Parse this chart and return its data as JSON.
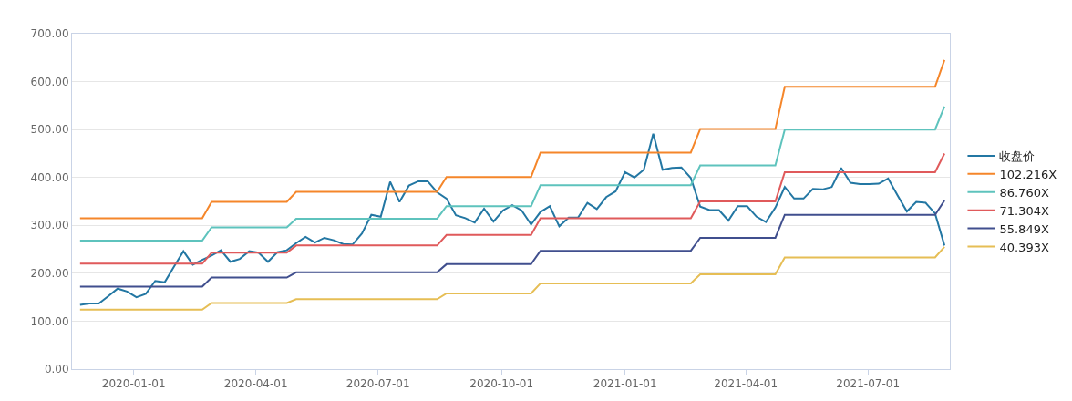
{
  "chart_data": {
    "type": "line",
    "x": [
      "2019-11-22",
      "2019-11-29",
      "2019-12-06",
      "2019-12-13",
      "2019-12-20",
      "2019-12-27",
      "2020-01-03",
      "2020-01-10",
      "2020-01-17",
      "2020-01-24",
      "2020-01-31",
      "2020-02-07",
      "2020-02-14",
      "2020-02-21",
      "2020-02-28",
      "2020-03-06",
      "2020-03-13",
      "2020-03-20",
      "2020-03-27",
      "2020-04-03",
      "2020-04-10",
      "2020-04-17",
      "2020-04-24",
      "2020-05-01",
      "2020-05-08",
      "2020-05-15",
      "2020-05-22",
      "2020-05-29",
      "2020-06-05",
      "2020-06-12",
      "2020-06-19",
      "2020-06-26",
      "2020-07-03",
      "2020-07-10",
      "2020-07-17",
      "2020-07-24",
      "2020-07-31",
      "2020-08-07",
      "2020-08-14",
      "2020-08-21",
      "2020-08-28",
      "2020-09-04",
      "2020-09-11",
      "2020-09-18",
      "2020-09-25",
      "2020-10-02",
      "2020-10-09",
      "2020-10-16",
      "2020-10-23",
      "2020-10-30",
      "2020-11-06",
      "2020-11-13",
      "2020-11-20",
      "2020-11-27",
      "2020-12-04",
      "2020-12-11",
      "2020-12-18",
      "2020-12-25",
      "2021-01-01",
      "2021-01-08",
      "2021-01-15",
      "2021-01-22",
      "2021-01-29",
      "2021-02-05",
      "2021-02-12",
      "2021-02-19",
      "2021-02-26",
      "2021-03-05",
      "2021-03-12",
      "2021-03-19",
      "2021-03-26",
      "2021-04-02",
      "2021-04-09",
      "2021-04-16",
      "2021-04-23",
      "2021-04-30",
      "2021-05-07",
      "2021-05-14",
      "2021-05-21",
      "2021-05-28",
      "2021-06-04",
      "2021-06-11",
      "2021-06-18",
      "2021-06-25",
      "2021-07-02",
      "2021-07-09",
      "2021-07-16",
      "2021-07-23",
      "2021-07-30",
      "2021-08-06",
      "2021-08-13",
      "2021-08-20",
      "2021-08-27"
    ],
    "series": [
      {
        "name": "收盘价",
        "color": "#2377a3",
        "values": [
          134,
          137,
          137,
          152,
          168,
          162,
          150,
          157,
          184,
          181,
          214,
          246,
          218,
          228,
          237,
          248,
          224,
          230,
          246,
          243,
          224,
          244,
          248,
          263,
          276,
          264,
          274,
          269,
          261,
          260,
          283,
          322,
          318,
          391,
          349,
          383,
          392,
          392,
          369,
          356,
          321,
          315,
          306,
          335,
          308,
          331,
          342,
          331,
          302,
          328,
          340,
          298,
          316,
          316,
          347,
          334,
          359,
          371,
          411,
          400,
          416,
          491,
          416,
          420,
          421,
          399,
          339,
          332,
          332,
          310,
          340,
          340,
          318,
          307,
          337,
          380,
          356,
          356,
          376,
          375,
          380,
          420,
          389,
          386,
          386,
          387,
          398,
          363,
          329,
          349,
          347,
          325,
          258
        ]
      },
      {
        "name": "102.216X",
        "color": "#f5862a",
        "values": [
          315,
          315,
          315,
          315,
          315,
          315,
          315,
          315,
          315,
          315,
          315,
          315,
          315,
          315,
          349,
          349,
          349,
          349,
          349,
          349,
          349,
          349,
          349,
          370,
          370,
          370,
          370,
          370,
          370,
          370,
          370,
          370,
          370,
          370,
          370,
          370,
          370,
          370,
          370,
          401,
          401,
          401,
          401,
          401,
          401,
          401,
          401,
          401,
          401,
          452,
          452,
          452,
          452,
          452,
          452,
          452,
          452,
          452,
          452,
          452,
          452,
          452,
          452,
          452,
          452,
          452,
          501,
          501,
          501,
          501,
          501,
          501,
          501,
          501,
          501,
          589,
          589,
          589,
          589,
          589,
          589,
          589,
          589,
          589,
          589,
          589,
          589,
          589,
          589,
          589,
          589,
          589,
          645
        ]
      },
      {
        "name": "86.760X",
        "color": "#5ec3bd",
        "values": [
          268,
          268,
          268,
          268,
          268,
          268,
          268,
          268,
          268,
          268,
          268,
          268,
          268,
          268,
          296,
          296,
          296,
          296,
          296,
          296,
          296,
          296,
          296,
          314,
          314,
          314,
          314,
          314,
          314,
          314,
          314,
          314,
          314,
          314,
          314,
          314,
          314,
          314,
          314,
          340,
          340,
          340,
          340,
          340,
          340,
          340,
          340,
          340,
          340,
          384,
          384,
          384,
          384,
          384,
          384,
          384,
          384,
          384,
          384,
          384,
          384,
          384,
          384,
          384,
          384,
          384,
          425,
          425,
          425,
          425,
          425,
          425,
          425,
          425,
          425,
          500,
          500,
          500,
          500,
          500,
          500,
          500,
          500,
          500,
          500,
          500,
          500,
          500,
          500,
          500,
          500,
          500,
          548
        ]
      },
      {
        "name": "71.304X",
        "color": "#e05a5b",
        "values": [
          220,
          220,
          220,
          220,
          220,
          220,
          220,
          220,
          220,
          220,
          220,
          220,
          220,
          220,
          243,
          243,
          243,
          243,
          243,
          243,
          243,
          243,
          243,
          258,
          258,
          258,
          258,
          258,
          258,
          258,
          258,
          258,
          258,
          258,
          258,
          258,
          258,
          258,
          258,
          280,
          280,
          280,
          280,
          280,
          280,
          280,
          280,
          280,
          280,
          315,
          315,
          315,
          315,
          315,
          315,
          315,
          315,
          315,
          315,
          315,
          315,
          315,
          315,
          315,
          315,
          315,
          350,
          350,
          350,
          350,
          350,
          350,
          350,
          350,
          350,
          411,
          411,
          411,
          411,
          411,
          411,
          411,
          411,
          411,
          411,
          411,
          411,
          411,
          411,
          411,
          411,
          411,
          450
        ]
      },
      {
        "name": "55.849X",
        "color": "#404f8e",
        "values": [
          172,
          172,
          172,
          172,
          172,
          172,
          172,
          172,
          172,
          172,
          172,
          172,
          172,
          172,
          191,
          191,
          191,
          191,
          191,
          191,
          191,
          191,
          191,
          202,
          202,
          202,
          202,
          202,
          202,
          202,
          202,
          202,
          202,
          202,
          202,
          202,
          202,
          202,
          202,
          219,
          219,
          219,
          219,
          219,
          219,
          219,
          219,
          219,
          219,
          247,
          247,
          247,
          247,
          247,
          247,
          247,
          247,
          247,
          247,
          247,
          247,
          247,
          247,
          247,
          247,
          247,
          274,
          274,
          274,
          274,
          274,
          274,
          274,
          274,
          274,
          322,
          322,
          322,
          322,
          322,
          322,
          322,
          322,
          322,
          322,
          322,
          322,
          322,
          322,
          322,
          322,
          322,
          352
        ]
      },
      {
        "name": "40.393X",
        "color": "#e6be55",
        "values": [
          124,
          124,
          124,
          124,
          124,
          124,
          124,
          124,
          124,
          124,
          124,
          124,
          124,
          124,
          138,
          138,
          138,
          138,
          138,
          138,
          138,
          138,
          138,
          146,
          146,
          146,
          146,
          146,
          146,
          146,
          146,
          146,
          146,
          146,
          146,
          146,
          146,
          146,
          146,
          158,
          158,
          158,
          158,
          158,
          158,
          158,
          158,
          158,
          158,
          179,
          179,
          179,
          179,
          179,
          179,
          179,
          179,
          179,
          179,
          179,
          179,
          179,
          179,
          179,
          179,
          179,
          198,
          198,
          198,
          198,
          198,
          198,
          198,
          198,
          198,
          233,
          233,
          233,
          233,
          233,
          233,
          233,
          233,
          233,
          233,
          233,
          233,
          233,
          233,
          233,
          233,
          233,
          255
        ]
      }
    ],
    "xlim": [
      "2019-11-16",
      "2021-08-31"
    ],
    "xticks": [
      "2020-01-01",
      "2020-04-01",
      "2020-07-01",
      "2020-10-01",
      "2021-01-01",
      "2021-04-01",
      "2021-07-01"
    ],
    "ylim": [
      0,
      700
    ],
    "yticks": [
      {
        "value": 0,
        "label": "0.00"
      },
      {
        "value": 100,
        "label": "100.00"
      },
      {
        "value": 200,
        "label": "200.00"
      },
      {
        "value": 300,
        "label": "300.00"
      },
      {
        "value": 400,
        "label": "400.00"
      },
      {
        "value": 500,
        "label": "500.00"
      },
      {
        "value": 600,
        "label": "600.00"
      },
      {
        "value": 700,
        "label": "700.00"
      }
    ],
    "grid": "y",
    "legend": "right",
    "marker": "none",
    "line_style": "solid"
  }
}
